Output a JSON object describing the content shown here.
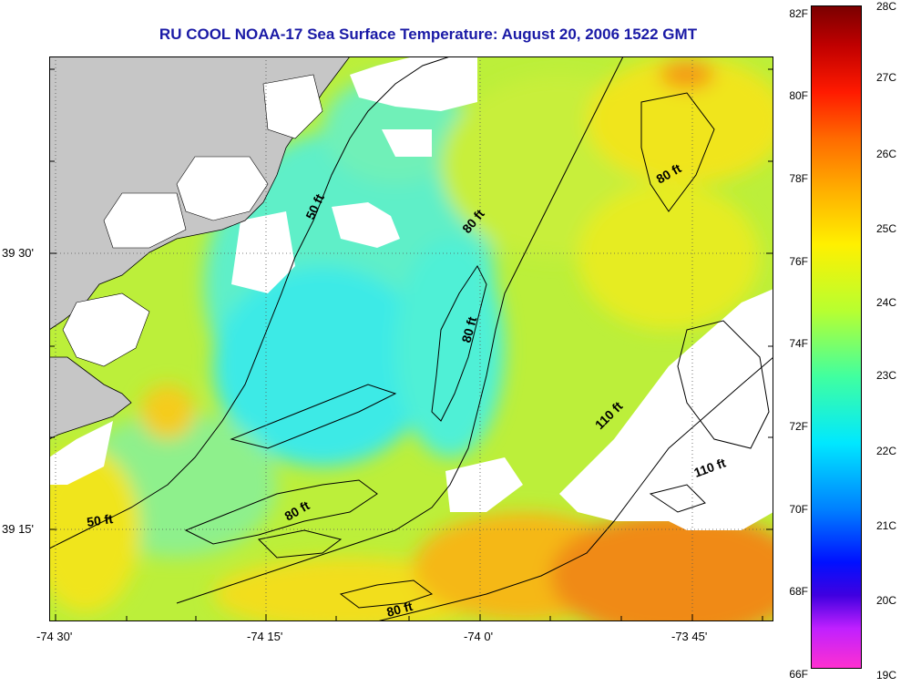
{
  "title": "RU COOL  NOAA-17  Sea Surface Temperature:  August 20, 2006 1522 GMT",
  "map": {
    "lon_ticks": [
      "-74 30'",
      "-74 15'",
      "-74 0'",
      "-73 45'"
    ],
    "lat_ticks": [
      "39 30'",
      "39 15'"
    ],
    "contour_labels": [
      "50 ft",
      "80 ft",
      "80 ft",
      "80 ft",
      "110 ft",
      "110 ft",
      "50 ft",
      "80 ft",
      "80 ft"
    ],
    "colors": {
      "land": "#c6c6c6",
      "cloud": "#ffffff",
      "contour": "#000000"
    }
  },
  "colorbar": {
    "fahrenheit": [
      "82F",
      "80F",
      "78F",
      "76F",
      "74F",
      "72F",
      "70F",
      "68F",
      "66F"
    ],
    "celsius": [
      "28C",
      "27C",
      "26C",
      "25C",
      "24C",
      "23C",
      "22C",
      "21C",
      "20C",
      "19C"
    ]
  }
}
